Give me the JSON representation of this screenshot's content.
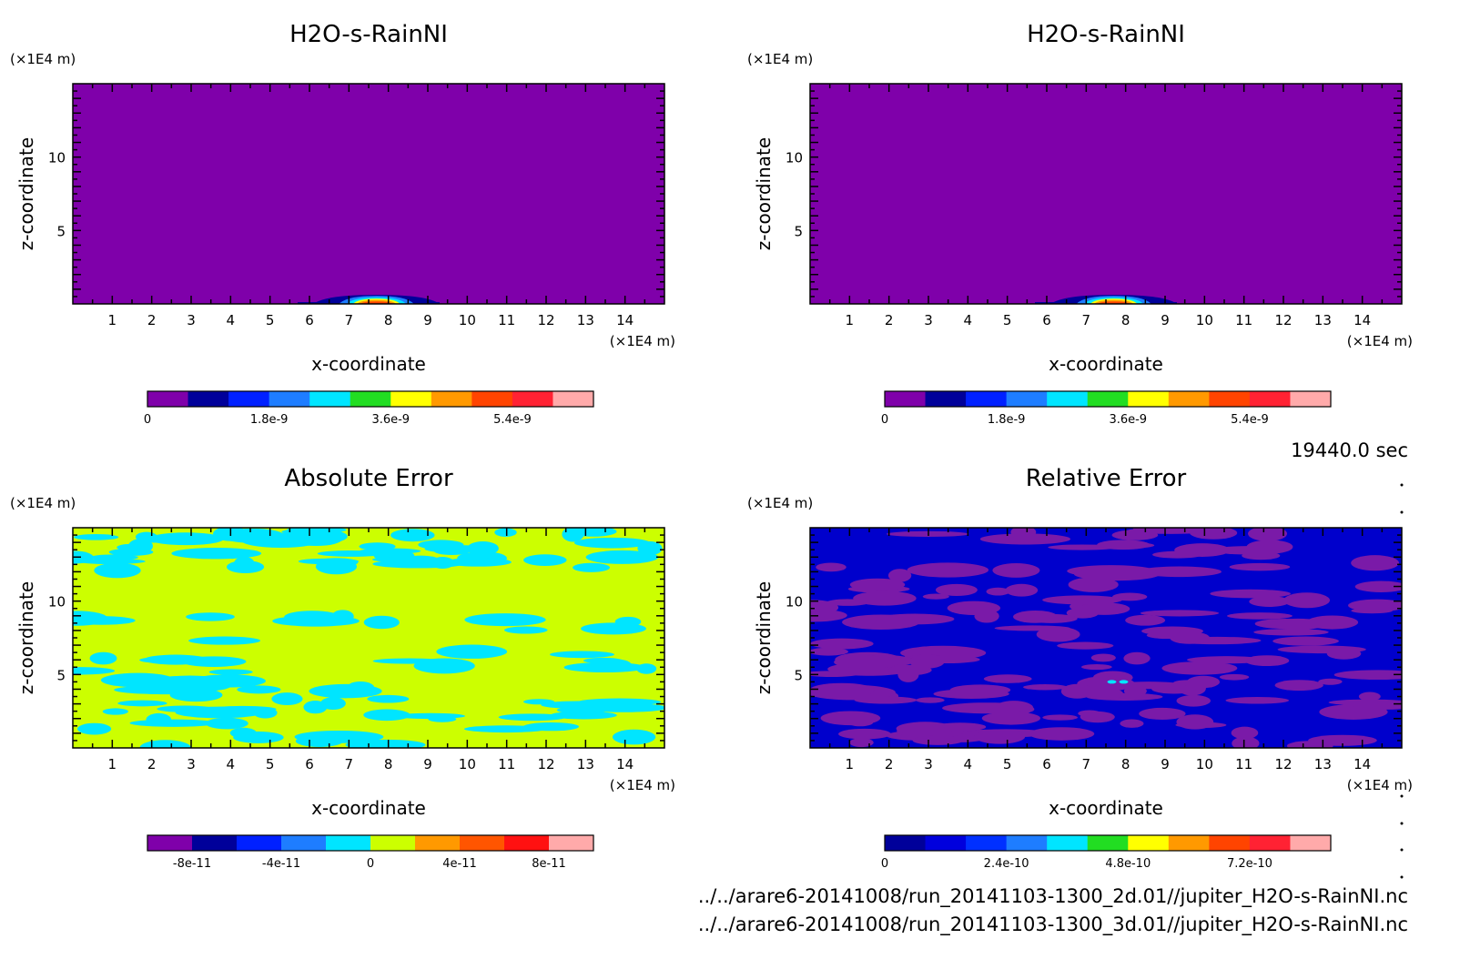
{
  "figure": {
    "time_label": "19440.0 sec",
    "files": [
      "../../arare6-20141008/run_20141103-1300_2d.01//jupiter_H2O-s-RainNI.nc",
      "../../arare6-20141008/run_20141103-1300_3d.01//jupiter_H2O-s-RainNI.nc"
    ]
  },
  "chart_data": [
    {
      "type": "heatmap",
      "title": "H2O-s-RainNI",
      "xlabel": "x-coordinate",
      "ylabel": "z-coordinate",
      "x_unit": "(×1E4 m)",
      "y_unit": "(×1E4 m)",
      "xlim": [
        0,
        15
      ],
      "ylim": [
        0,
        15
      ],
      "xticks": [
        1,
        2,
        3,
        4,
        5,
        6,
        7,
        8,
        9,
        10,
        11,
        12,
        13,
        14
      ],
      "yticks": [
        5,
        10
      ],
      "background_level": 0,
      "feature": {
        "x_center": 7.7,
        "x_halfwidth": 0.6,
        "z_top": 0.6,
        "description_levels": [
          1,
          2,
          3,
          4,
          5,
          6,
          7,
          8
        ]
      },
      "colorbar": {
        "levels": 11,
        "colors": [
          "#7f00aa",
          "#00009a",
          "#0020ff",
          "#1e7dff",
          "#00e5ff",
          "#22dd22",
          "#ffff00",
          "#ff9900",
          "#ff4400",
          "#ff2233",
          "#ffaaaa"
        ],
        "tick_labels": [
          "0",
          "1.8e-9",
          "3.6e-9",
          "5.4e-9"
        ],
        "tick_positions": [
          0,
          3,
          6,
          9
        ]
      }
    },
    {
      "type": "heatmap",
      "title": "H2O-s-RainNI",
      "xlabel": "x-coordinate",
      "ylabel": "z-coordinate",
      "x_unit": "(×1E4 m)",
      "y_unit": "(×1E4 m)",
      "xlim": [
        0,
        15
      ],
      "ylim": [
        0,
        15
      ],
      "xticks": [
        1,
        2,
        3,
        4,
        5,
        6,
        7,
        8,
        9,
        10,
        11,
        12,
        13,
        14
      ],
      "yticks": [
        5,
        10
      ],
      "background_level": 0,
      "feature": {
        "x_center": 7.7,
        "x_halfwidth": 0.6,
        "z_top": 0.6,
        "description_levels": [
          1,
          2,
          3,
          4,
          5,
          6,
          7,
          8
        ]
      },
      "colorbar": {
        "levels": 11,
        "colors": [
          "#7f00aa",
          "#00009a",
          "#0020ff",
          "#1e7dff",
          "#00e5ff",
          "#22dd22",
          "#ffff00",
          "#ff9900",
          "#ff4400",
          "#ff2233",
          "#ffaaaa"
        ],
        "tick_labels": [
          "0",
          "1.8e-9",
          "3.6e-9",
          "5.4e-9"
        ],
        "tick_positions": [
          0,
          3,
          6,
          9
        ]
      }
    },
    {
      "type": "heatmap",
      "title": "Absolute Error",
      "xlabel": "x-coordinate",
      "ylabel": "z-coordinate",
      "x_unit": "(×1E4 m)",
      "y_unit": "(×1E4 m)",
      "xlim": [
        0,
        15
      ],
      "ylim": [
        0,
        15
      ],
      "xticks": [
        1,
        2,
        3,
        4,
        5,
        6,
        7,
        8,
        9,
        10,
        11,
        12,
        13,
        14
      ],
      "yticks": [
        5,
        10
      ],
      "background_color": "#ccff00",
      "patch_color": "#00e5ff",
      "colorbar": {
        "levels": 10,
        "colors": [
          "#7f00aa",
          "#00009a",
          "#0020ff",
          "#1e7dff",
          "#00e5ff",
          "#ccff00",
          "#ff9900",
          "#ff5500",
          "#ff1111",
          "#ffaaaa"
        ],
        "tick_labels": [
          "-8e-11",
          "-4e-11",
          "0",
          "4e-11",
          "8e-11"
        ],
        "tick_positions": [
          1,
          3,
          5,
          7,
          9
        ]
      }
    },
    {
      "type": "heatmap",
      "title": "Relative Error",
      "xlabel": "x-coordinate",
      "ylabel": "z-coordinate",
      "x_unit": "(×1E4 m)",
      "y_unit": "(×1E4 m)",
      "xlim": [
        0,
        15
      ],
      "ylim": [
        0,
        15
      ],
      "xticks": [
        1,
        2,
        3,
        4,
        5,
        6,
        7,
        8,
        9,
        10,
        11,
        12,
        13,
        14
      ],
      "yticks": [
        5,
        10
      ],
      "background_color": "#0000cc",
      "patch_color": "#7a1aa8",
      "colorbar": {
        "levels": 11,
        "colors": [
          "#00009a",
          "#0000dd",
          "#0030ff",
          "#1e7dff",
          "#00e5ff",
          "#22dd22",
          "#ffff00",
          "#ff9900",
          "#ff4400",
          "#ff2233",
          "#ffaaaa"
        ],
        "tick_labels": [
          "0",
          "2.4e-10",
          "4.8e-10",
          "7.2e-10"
        ],
        "tick_positions": [
          0,
          3,
          6,
          9
        ]
      }
    }
  ]
}
